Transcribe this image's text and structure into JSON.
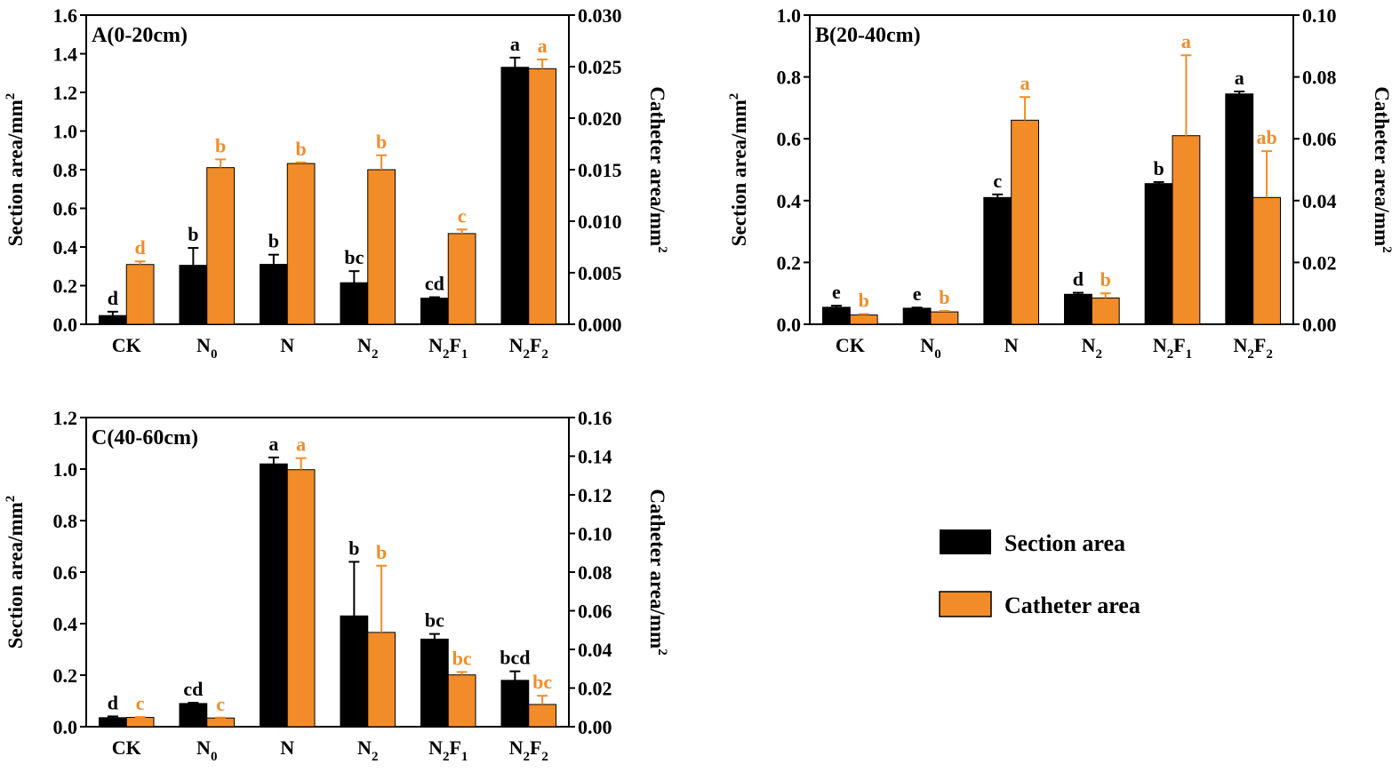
{
  "colors": {
    "section": "#000000",
    "catheter": "#F28C28"
  },
  "legend": {
    "section": "Section area",
    "catheter": "Catheter area"
  },
  "axis_labels": {
    "left_base": "Section area/mm",
    "right_base": "Catheter area/mm",
    "exponent": "2"
  },
  "chart_data": [
    {
      "type": "bar",
      "title": "A(0-20cm)",
      "categories": [
        {
          "base": "CK",
          "parts": []
        },
        {
          "base": "N",
          "parts": [
            {
              "sub": "0"
            }
          ]
        },
        {
          "base": "N",
          "parts": []
        },
        {
          "base": "N",
          "parts": [
            {
              "sub": "2"
            }
          ]
        },
        {
          "base": "N",
          "parts": [
            {
              "sub": "2"
            },
            {
              "text": "F"
            },
            {
              "sub": "1"
            }
          ]
        },
        {
          "base": "N",
          "parts": [
            {
              "sub": "2"
            },
            {
              "text": "F"
            },
            {
              "sub": "2"
            }
          ]
        }
      ],
      "ylabel": "Section area/mm2",
      "y2label": "Catheter area/mm2",
      "ylim": [
        0,
        1.6
      ],
      "y2lim": [
        0,
        0.03
      ],
      "yticks": [
        "0.0",
        "0.2",
        "0.4",
        "0.6",
        "0.8",
        "1.0",
        "1.2",
        "1.4",
        "1.6"
      ],
      "y2ticks": [
        "0.000",
        "0.005",
        "0.010",
        "0.015",
        "0.020",
        "0.025",
        "0.030"
      ],
      "series": [
        {
          "name": "Section area",
          "axis": "left",
          "values": [
            0.045,
            0.305,
            0.31,
            0.215,
            0.135,
            1.33
          ],
          "errors": [
            0.02,
            0.09,
            0.05,
            0.06,
            0.005,
            0.05
          ],
          "letters": [
            "d",
            "b",
            "b",
            "bc",
            "cd",
            "a"
          ]
        },
        {
          "name": "Catheter area",
          "axis": "right",
          "values": [
            0.0058,
            0.0152,
            0.0156,
            0.015,
            0.0088,
            0.0248
          ],
          "errors": [
            0.0003,
            0.0008,
            0.0001,
            0.0014,
            0.0004,
            0.0009
          ],
          "letters": [
            "d",
            "b",
            "b",
            "b",
            "c",
            "a"
          ]
        }
      ]
    },
    {
      "type": "bar",
      "title": "B(20-40cm)",
      "categories": [
        {
          "base": "CK",
          "parts": []
        },
        {
          "base": "N",
          "parts": [
            {
              "sub": "0"
            }
          ]
        },
        {
          "base": "N",
          "parts": []
        },
        {
          "base": "N",
          "parts": [
            {
              "sub": "2"
            }
          ]
        },
        {
          "base": "N",
          "parts": [
            {
              "sub": "2"
            },
            {
              "text": "F"
            },
            {
              "sub": "1"
            }
          ]
        },
        {
          "base": "N",
          "parts": [
            {
              "sub": "2"
            },
            {
              "text": "F"
            },
            {
              "sub": "2"
            }
          ]
        }
      ],
      "ylabel": "Section area/mm2",
      "y2label": "Catheter area/mm2",
      "ylim": [
        0,
        1.0
      ],
      "y2lim": [
        0,
        0.1
      ],
      "yticks": [
        "0.0",
        "0.2",
        "0.4",
        "0.6",
        "0.8",
        "1.0"
      ],
      "y2ticks": [
        "0.00",
        "0.02",
        "0.04",
        "0.06",
        "0.08",
        "0.10"
      ],
      "series": [
        {
          "name": "Section area",
          "axis": "left",
          "values": [
            0.055,
            0.052,
            0.41,
            0.097,
            0.455,
            0.745
          ],
          "errors": [
            0.005,
            0.002,
            0.01,
            0.005,
            0.005,
            0.008
          ],
          "letters": [
            "e",
            "e",
            "c",
            "d",
            "b",
            "a"
          ]
        },
        {
          "name": "Catheter area",
          "axis": "right",
          "values": [
            0.003,
            0.004,
            0.066,
            0.0085,
            0.061,
            0.041
          ],
          "errors": [
            0.0003,
            0.0003,
            0.0075,
            0.0015,
            0.026,
            0.015
          ],
          "letters": [
            "b",
            "b",
            "a",
            "b",
            "a",
            "ab"
          ]
        }
      ]
    },
    {
      "type": "bar",
      "title": "C(40-60cm)",
      "categories": [
        {
          "base": "CK",
          "parts": []
        },
        {
          "base": "N",
          "parts": [
            {
              "sub": "0"
            }
          ]
        },
        {
          "base": "N",
          "parts": []
        },
        {
          "base": "N",
          "parts": [
            {
              "sub": "2"
            }
          ]
        },
        {
          "base": "N",
          "parts": [
            {
              "sub": "2"
            },
            {
              "text": "F"
            },
            {
              "sub": "1"
            }
          ]
        },
        {
          "base": "N",
          "parts": [
            {
              "sub": "2"
            },
            {
              "text": "F"
            },
            {
              "sub": "2"
            }
          ]
        }
      ],
      "ylabel": "Section area/mm2",
      "y2label": "Catheter area/mm2",
      "ylim": [
        0,
        1.2
      ],
      "y2lim": [
        0,
        0.16
      ],
      "yticks": [
        "0.0",
        "0.2",
        "0.4",
        "0.6",
        "0.8",
        "1.0",
        "1.2"
      ],
      "y2ticks": [
        "0.00",
        "0.02",
        "0.04",
        "0.06",
        "0.08",
        "0.10",
        "0.12",
        "0.14",
        "0.16"
      ],
      "series": [
        {
          "name": "Section area",
          "axis": "left",
          "values": [
            0.035,
            0.09,
            1.02,
            0.43,
            0.34,
            0.18
          ],
          "errors": [
            0.005,
            0.003,
            0.025,
            0.21,
            0.02,
            0.035
          ],
          "letters": [
            "d",
            "cd",
            "a",
            "b",
            "bc",
            "bcd"
          ]
        },
        {
          "name": "Catheter area",
          "axis": "right",
          "values": [
            0.0048,
            0.0045,
            0.133,
            0.0488,
            0.0268,
            0.0115
          ],
          "errors": [
            0.0002,
            0.0002,
            0.006,
            0.0345,
            0.0015,
            0.0045
          ],
          "letters": [
            "c",
            "c",
            "a",
            "b",
            "bc",
            "bc"
          ]
        }
      ]
    }
  ]
}
